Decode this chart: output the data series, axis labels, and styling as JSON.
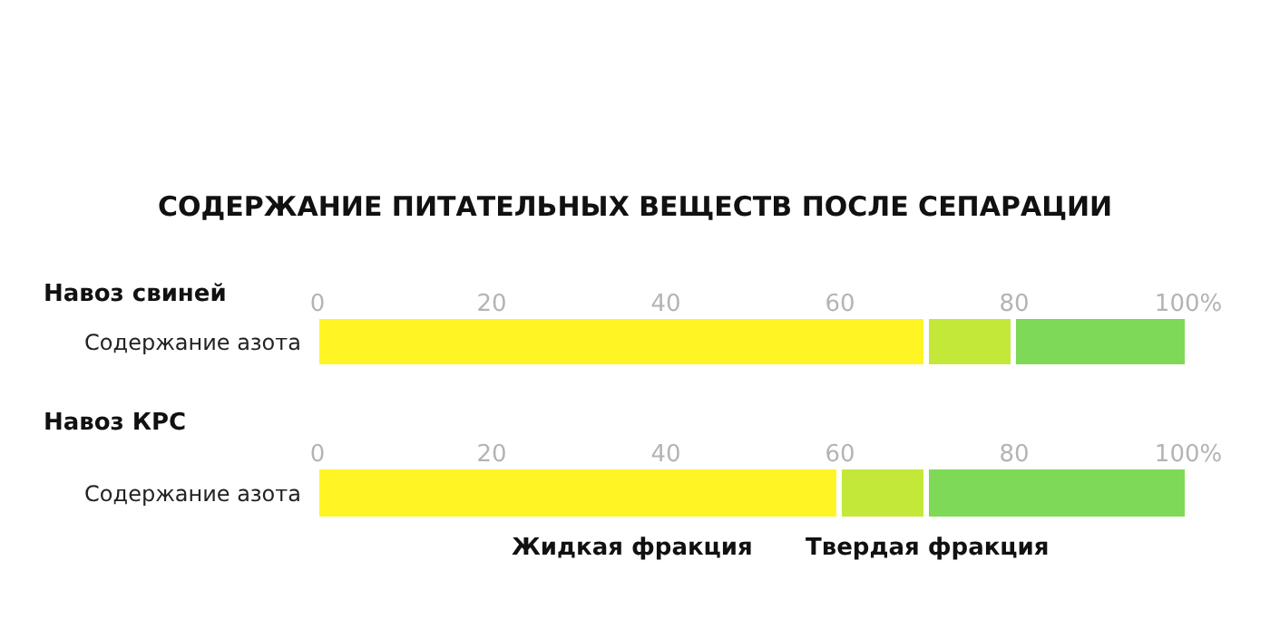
{
  "chart_data": [
    {
      "type": "bar",
      "title": "СОДЕРЖАНИЕ ПИТАТЕЛЬНЫХ ВЕЩЕСТВ ПОСЛЕ СЕПАРАЦИИ",
      "subtitle": "Навоз свиней",
      "orientation": "horizontal",
      "stacked": true,
      "categories": [
        "Содержание азота"
      ],
      "series": [
        {
          "color": "#fff525",
          "values": [
            70
          ]
        },
        {
          "color": "#c3e83a",
          "values": [
            10
          ]
        },
        {
          "color": "#7ed957",
          "values": [
            20
          ]
        }
      ],
      "xlim": [
        0,
        100
      ],
      "xticks": [
        0,
        20,
        40,
        60,
        80,
        {
          "value": 100,
          "label": "100%"
        }
      ]
    },
    {
      "type": "bar",
      "subtitle": "Навоз КРС",
      "orientation": "horizontal",
      "stacked": true,
      "categories": [
        "Содержание азота"
      ],
      "series": [
        {
          "color": "#fff525",
          "values": [
            60
          ]
        },
        {
          "color": "#c3e83a",
          "values": [
            10
          ]
        },
        {
          "color": "#7ed957",
          "values": [
            30
          ]
        }
      ],
      "xlim": [
        0,
        100
      ],
      "xticks": [
        0,
        20,
        40,
        60,
        80,
        {
          "value": 100,
          "label": "100%"
        }
      ],
      "annotations": [
        "Жидкая фракция",
        "Твердая фракция"
      ]
    }
  ]
}
